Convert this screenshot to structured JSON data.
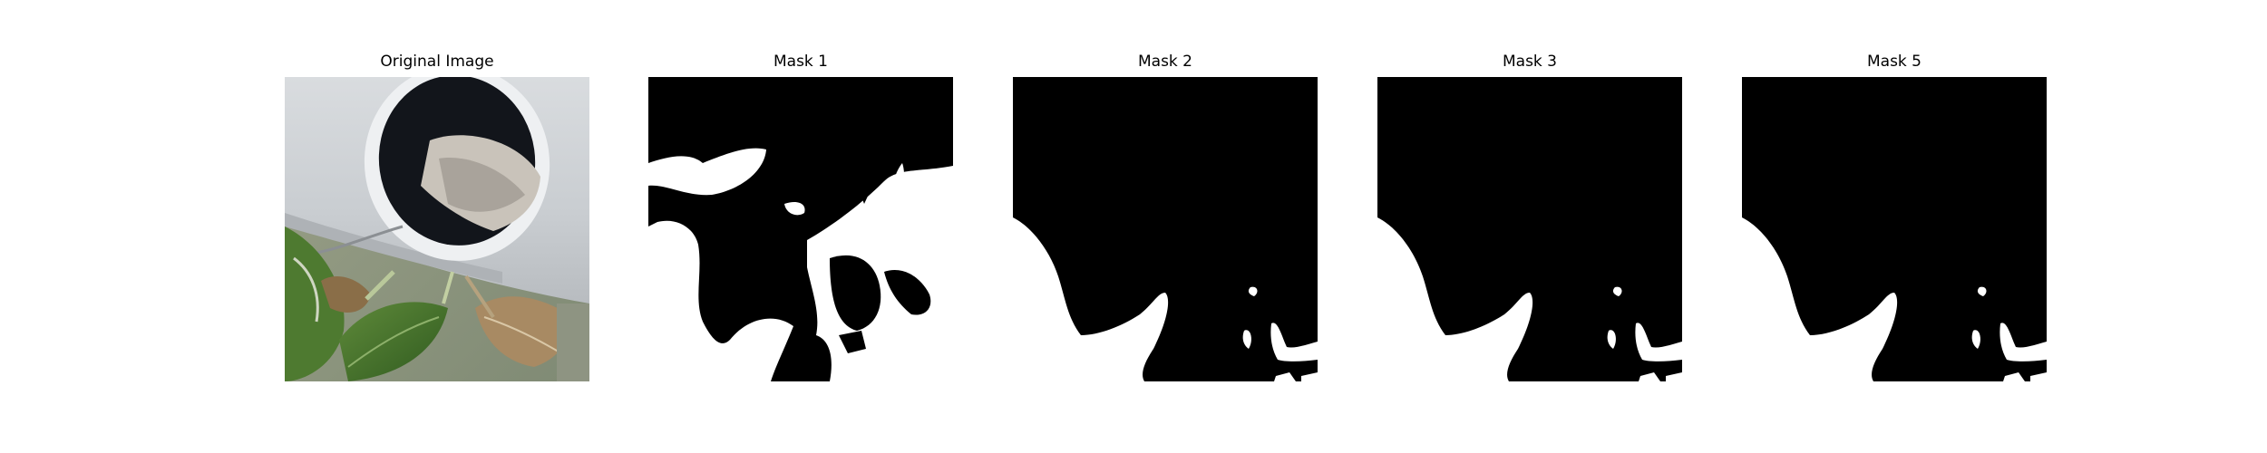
{
  "figure": {
    "panels": [
      {
        "title": "Original Image",
        "kind": "photo"
      },
      {
        "title": "Mask 1",
        "kind": "mask"
      },
      {
        "title": "Mask 2",
        "kind": "mask"
      },
      {
        "title": "Mask 3",
        "kind": "mask"
      },
      {
        "title": "Mask 5",
        "kind": "mask"
      }
    ],
    "colors": {
      "background": "#ffffff",
      "mask_background": "#000000",
      "mask_foreground": "#ffffff"
    }
  }
}
